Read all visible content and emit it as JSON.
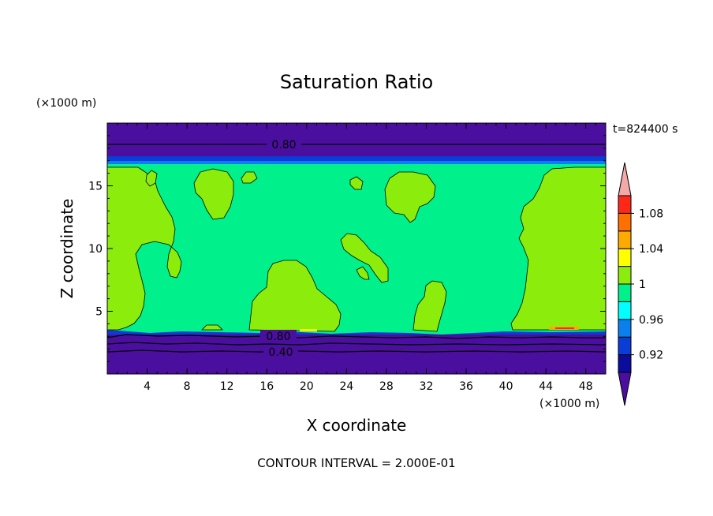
{
  "chart_data": {
    "type": "heatmap",
    "title": "Saturation Ratio",
    "xlabel": "X coordinate",
    "ylabel": "Z coordinate",
    "x_unit": "(×1000 m)",
    "y_unit": "(×1000 m)",
    "time_label": "t=824400 s",
    "footer": "CONTOUR INTERVAL = 2.000E-01",
    "xlim": [
      0,
      50
    ],
    "ylim": [
      0,
      20
    ],
    "x_ticks": [
      "4",
      "8",
      "12",
      "16",
      "20",
      "24",
      "28",
      "32",
      "36",
      "40",
      "44",
      "48"
    ],
    "y_ticks": [
      "5",
      "10",
      "15"
    ],
    "contour_labels": [
      "0.80",
      "0.80",
      "0.40"
    ],
    "colorbar_labels": [
      "1.08",
      "1.04",
      "1",
      "0.96",
      "0.92"
    ],
    "colorbar_levels": [
      0.9,
      0.92,
      0.94,
      0.96,
      0.98,
      1.0,
      1.02,
      1.04,
      1.06,
      1.08,
      1.1
    ],
    "colorbar_colors": [
      "#4b0fa0",
      "#0c0c9c",
      "#0c3cd8",
      "#0a80f0",
      "#00ffff",
      "#00f08c",
      "#8ced0c",
      "#ffff00",
      "#ffaa00",
      "#ff7000",
      "#ff2818",
      "#f4a8a8"
    ]
  }
}
